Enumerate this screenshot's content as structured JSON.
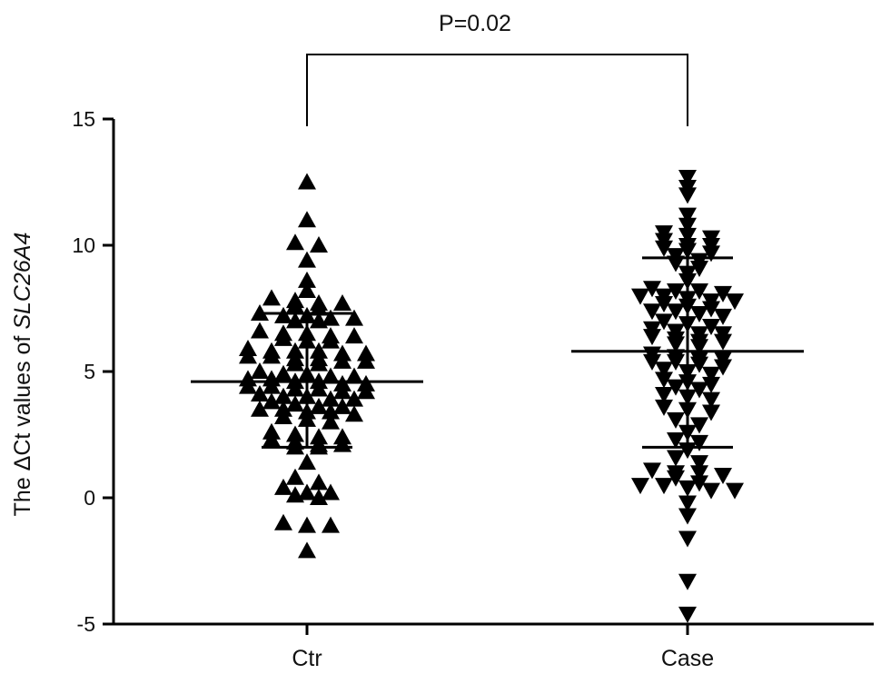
{
  "chart_data": {
    "type": "scatter",
    "title": "",
    "xlabel": "",
    "ylabel_prefix": "The ΔCt values of ",
    "ylabel_gene": "SLC26A4",
    "categories": [
      "Ctr",
      "Case"
    ],
    "ylim": [
      -5,
      15
    ],
    "yticks": [
      -5,
      0,
      5,
      10,
      15
    ],
    "ytick_labels": [
      "-5",
      "0",
      "5",
      "10",
      "15"
    ],
    "grid": false,
    "annotation": "P=0.02",
    "series": [
      {
        "category": "Ctr",
        "marker": "triangle-up",
        "color": "#000000",
        "mean": 4.6,
        "sd_low": 2.0,
        "sd_high": 7.3,
        "values": [
          12.5,
          11.0,
          10.1,
          10.0,
          9.4,
          8.6,
          8.2,
          7.9,
          7.8,
          7.7,
          7.7,
          7.6,
          7.5,
          7.3,
          7.2,
          7.2,
          7.1,
          7.1,
          7.0,
          7.0,
          6.6,
          6.5,
          6.5,
          6.4,
          6.4,
          6.3,
          6.2,
          6.2,
          5.9,
          5.8,
          5.8,
          5.8,
          5.7,
          5.7,
          5.6,
          5.6,
          5.5,
          5.5,
          5.4,
          5.4,
          5.3,
          5.3,
          5.0,
          4.9,
          4.9,
          4.8,
          4.8,
          4.7,
          4.7,
          4.6,
          4.6,
          4.5,
          4.5,
          4.4,
          4.4,
          4.3,
          4.3,
          4.2,
          4.2,
          4.1,
          4.0,
          4.0,
          3.9,
          3.9,
          3.8,
          3.7,
          3.6,
          3.6,
          3.5,
          3.5,
          3.4,
          3.4,
          3.3,
          3.2,
          3.1,
          3.0,
          2.6,
          2.5,
          2.4,
          2.4,
          2.3,
          2.2,
          2.1,
          2.1,
          2.0,
          2.0,
          1.4,
          0.8,
          0.6,
          0.4,
          0.2,
          0.2,
          0.1,
          0.0,
          -1.0,
          -1.1,
          -1.1,
          -2.1
        ]
      },
      {
        "category": "Case",
        "marker": "triangle-down",
        "color": "#000000",
        "mean": 5.8,
        "sd_low": 2.0,
        "sd_high": 9.5,
        "values": [
          12.7,
          12.3,
          12.0,
          11.2,
          10.8,
          10.5,
          10.4,
          10.3,
          10.2,
          10.0,
          10.0,
          9.9,
          9.8,
          9.7,
          9.6,
          9.4,
          9.3,
          9.1,
          8.9,
          8.6,
          8.3,
          8.2,
          8.2,
          8.1,
          8.0,
          8.0,
          7.9,
          7.8,
          7.8,
          7.7,
          7.6,
          7.5,
          7.4,
          7.4,
          7.3,
          7.2,
          7.0,
          6.9,
          6.8,
          6.7,
          6.6,
          6.5,
          6.5,
          6.4,
          6.3,
          6.2,
          6.2,
          6.1,
          6.0,
          5.7,
          5.6,
          5.5,
          5.5,
          5.4,
          5.4,
          5.3,
          5.2,
          5.1,
          5.0,
          4.9,
          4.7,
          4.6,
          4.5,
          4.4,
          4.3,
          4.1,
          4.0,
          3.9,
          3.6,
          3.5,
          3.4,
          3.1,
          2.9,
          2.6,
          2.3,
          2.2,
          1.9,
          1.6,
          1.4,
          1.1,
          1.0,
          1.0,
          0.9,
          0.8,
          0.6,
          0.5,
          0.5,
          0.4,
          0.3,
          0.3,
          -0.2,
          -0.7,
          -1.6,
          -3.3,
          -4.6
        ]
      }
    ]
  }
}
